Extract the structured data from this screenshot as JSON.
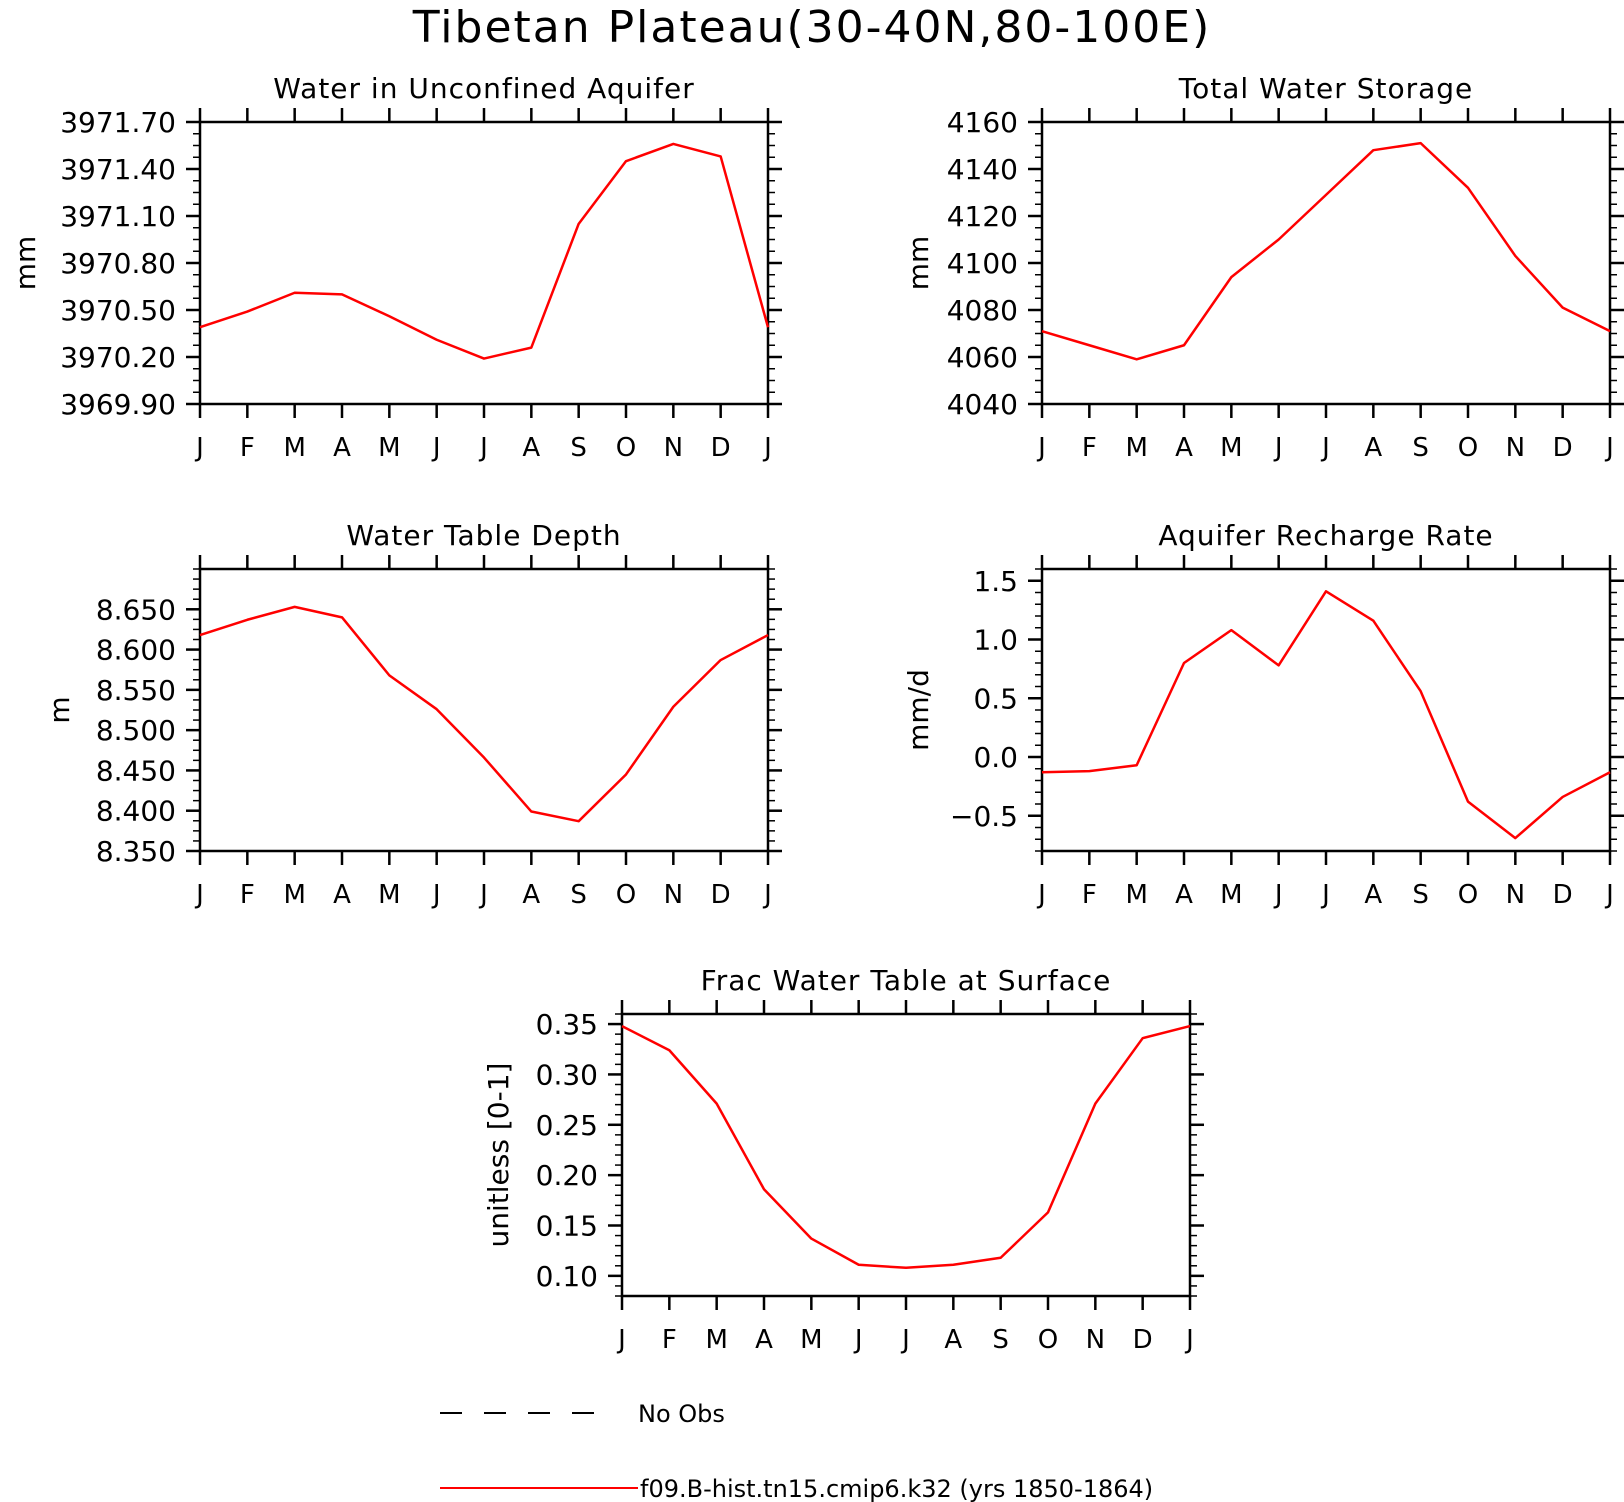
{
  "page": {
    "title": "Tibetan Plateau(30-40N,80-100E)"
  },
  "months": [
    "J",
    "F",
    "M",
    "A",
    "M",
    "J",
    "J",
    "A",
    "S",
    "O",
    "N",
    "D",
    "J"
  ],
  "chart_data": [
    {
      "type": "line",
      "title": "Water in Unconfined Aquifer",
      "ylabel": "mm",
      "ylim": [
        3969.9,
        3971.7
      ],
      "yticks": [
        3969.9,
        3970.2,
        3970.5,
        3970.8,
        3971.1,
        3971.4,
        3971.7
      ],
      "ytick_labels": [
        "3969.90",
        "3970.20",
        "3970.50",
        "3970.80",
        "3971.10",
        "3971.40",
        "3971.70"
      ],
      "yminor": 0.075,
      "series": [
        {
          "color": "#ff0000",
          "values": [
            3970.39,
            3970.49,
            3970.61,
            3970.6,
            3970.46,
            3970.31,
            3970.19,
            3970.26,
            3971.05,
            3971.45,
            3971.56,
            3971.48,
            3970.39
          ]
        }
      ]
    },
    {
      "type": "line",
      "title": "Total Water Storage",
      "ylabel": "mm",
      "ylim": [
        4040,
        4160
      ],
      "yticks": [
        4040,
        4060,
        4080,
        4100,
        4120,
        4140,
        4160
      ],
      "ytick_labels": [
        "4040",
        "4060",
        "4080",
        "4100",
        "4120",
        "4140",
        "4160"
      ],
      "yminor": 5,
      "series": [
        {
          "color": "#ff0000",
          "values": [
            4071,
            4065,
            4059,
            4065,
            4094,
            4110,
            4129,
            4148,
            4151,
            4132,
            4103,
            4081,
            4071
          ]
        }
      ]
    },
    {
      "type": "line",
      "title": "Water Table Depth",
      "ylabel": "m",
      "ylim": [
        8.35,
        8.7
      ],
      "yticks": [
        8.35,
        8.4,
        8.45,
        8.5,
        8.55,
        8.6,
        8.65
      ],
      "ytick_labels": [
        "8.350",
        "8.400",
        "8.450",
        "8.500",
        "8.550",
        "8.600",
        "8.650"
      ],
      "yminor": 0.0125,
      "series": [
        {
          "color": "#ff0000",
          "values": [
            8.618,
            8.637,
            8.653,
            8.64,
            8.568,
            8.526,
            8.466,
            8.399,
            8.387,
            8.445,
            8.529,
            8.587,
            8.618
          ]
        }
      ]
    },
    {
      "type": "line",
      "title": "Aquifer Recharge Rate",
      "ylabel": "mm/d",
      "ylim": [
        -0.8,
        1.6
      ],
      "yticks": [
        -0.5,
        0.0,
        0.5,
        1.0,
        1.5
      ],
      "ytick_labels": [
        "−0.5",
        "0.0",
        "0.5",
        "1.0",
        "1.5"
      ],
      "yminor": 0.1,
      "series": [
        {
          "color": "#ff0000",
          "values": [
            -0.13,
            -0.12,
            -0.07,
            0.8,
            1.08,
            0.78,
            1.41,
            1.16,
            0.56,
            -0.38,
            -0.69,
            -0.34,
            -0.13
          ]
        }
      ]
    },
    {
      "type": "line",
      "title": "Frac Water Table at Surface",
      "ylabel": "unitless [0-1]",
      "ylim": [
        0.08,
        0.36
      ],
      "yticks": [
        0.1,
        0.15,
        0.2,
        0.25,
        0.3,
        0.35
      ],
      "ytick_labels": [
        "0.10",
        "0.15",
        "0.20",
        "0.25",
        "0.30",
        "0.35"
      ],
      "yminor": 0.01,
      "series": [
        {
          "color": "#ff0000",
          "values": [
            0.348,
            0.324,
            0.271,
            0.186,
            0.137,
            0.111,
            0.108,
            0.111,
            0.118,
            0.163,
            0.271,
            0.336,
            0.348
          ]
        }
      ]
    }
  ],
  "legend": [
    {
      "label": "No Obs",
      "color": "#000000",
      "style": "dashed"
    },
    {
      "label": "f09.B-hist.tn15.cmip6.k32 (yrs 1850-1864)",
      "color": "#ff0000",
      "style": "solid"
    }
  ]
}
